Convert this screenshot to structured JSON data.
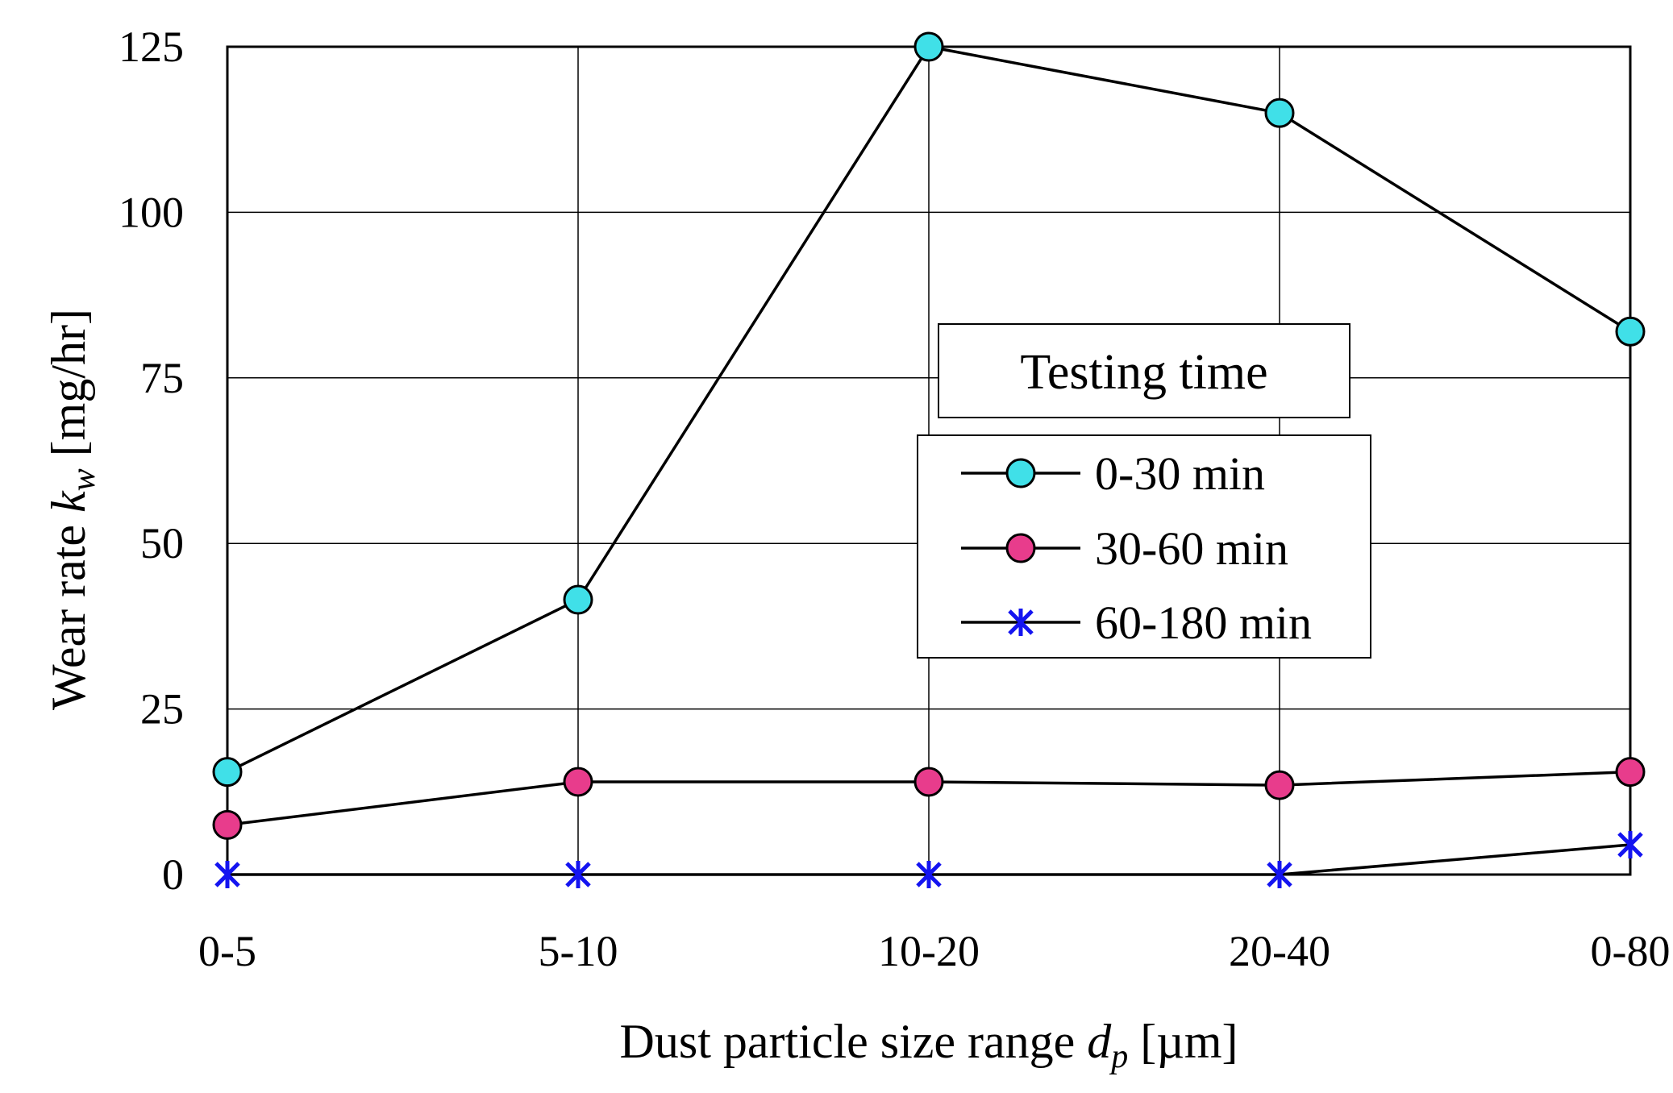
{
  "chart_data": {
    "type": "line",
    "title": "",
    "xlabel": {
      "prefix": "Dust particle size range ",
      "symbol": "d",
      "subscript": "p",
      "unit": " [µm]"
    },
    "ylabel": {
      "prefix": "Wear rate ",
      "symbol": "k",
      "subscript": "w",
      "unit": " [mg/hr]"
    },
    "categories": [
      "0-5",
      "5-10",
      "10-20",
      "20-40",
      "0-80"
    ],
    "ylim": [
      0,
      125
    ],
    "yticks": [
      0,
      25,
      50,
      75,
      100,
      125
    ],
    "grid": true,
    "legend": {
      "title": "Testing time",
      "placement": "center-right"
    },
    "series": [
      {
        "name": "0-30 min",
        "marker": "circle",
        "fill": "#40E0E8",
        "values": [
          15.5,
          41.5,
          125,
          115,
          82
        ]
      },
      {
        "name": "30-60 min",
        "marker": "circle",
        "fill": "#E83C8C",
        "values": [
          7.5,
          14,
          14,
          13.5,
          15.5
        ]
      },
      {
        "name": "60-180 min",
        "marker": "asterisk",
        "fill": "#1414F0",
        "values": [
          0,
          0,
          0,
          0,
          4.5
        ]
      }
    ]
  }
}
